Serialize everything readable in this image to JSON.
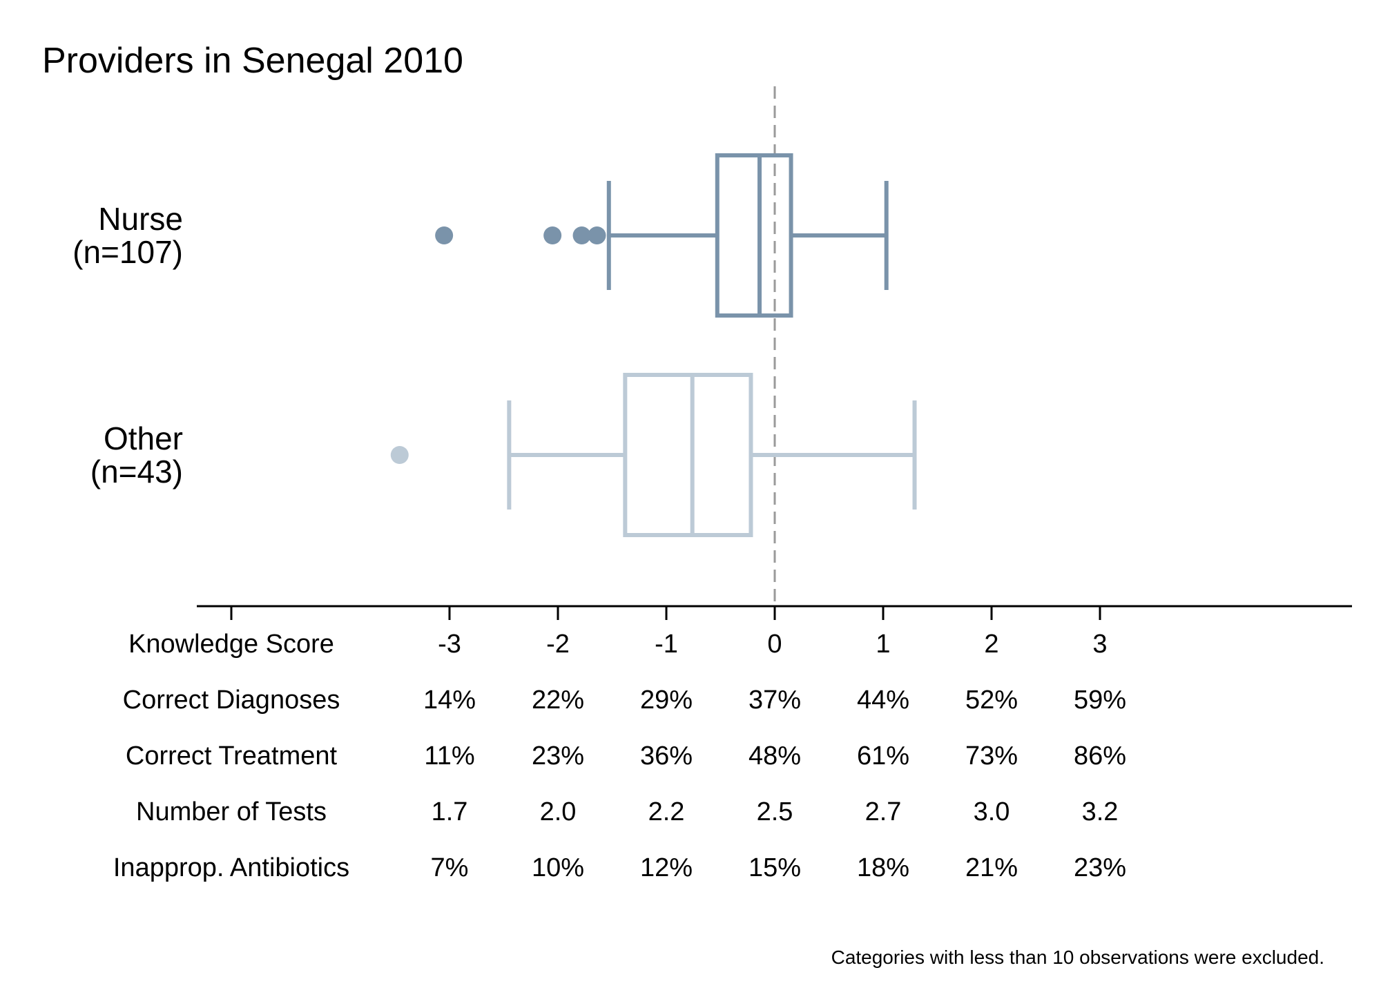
{
  "chart_data": {
    "type": "boxplot",
    "title": "Providers in Senegal 2010",
    "xlim": [
      -5,
      5.4
    ],
    "reference_line": 0,
    "groups": [
      {
        "label_line1": "Nurse",
        "label_line2": "(n=107)",
        "color": "#7a93aa",
        "whisker_low": -1.53,
        "q1": -0.53,
        "median": -0.14,
        "q3": 0.15,
        "whisker_high": 1.03,
        "outliers": [
          -3.05,
          -2.05,
          -1.78,
          -1.64
        ]
      },
      {
        "label_line1": "Other",
        "label_line2": "(n=43)",
        "color": "#bccad6",
        "whisker_low": -2.45,
        "q1": -1.38,
        "median": -0.76,
        "q3": -0.22,
        "whisker_high": 1.29,
        "outliers": [
          -3.46
        ]
      }
    ],
    "table": {
      "x_positions": [
        -3,
        -2,
        -1,
        0,
        1,
        2,
        3
      ],
      "rows": [
        {
          "label": "Knowledge Score",
          "values": [
            "-3",
            "-2",
            "-1",
            "0",
            "1",
            "2",
            "3"
          ]
        },
        {
          "label": "Correct Diagnoses",
          "values": [
            "14%",
            "22%",
            "29%",
            "37%",
            "44%",
            "52%",
            "59%"
          ]
        },
        {
          "label": "Correct Treatment",
          "values": [
            "11%",
            "23%",
            "36%",
            "48%",
            "61%",
            "73%",
            "86%"
          ]
        },
        {
          "label": "Number of Tests",
          "values": [
            "1.7",
            "2.0",
            "2.2",
            "2.5",
            "2.7",
            "3.0",
            "3.2"
          ]
        },
        {
          "label": "Inapprop. Antibiotics",
          "values": [
            "7%",
            "10%",
            "12%",
            "15%",
            "18%",
            "21%",
            "23%"
          ]
        }
      ]
    },
    "note": "Categories with less than 10 observations were excluded."
  }
}
